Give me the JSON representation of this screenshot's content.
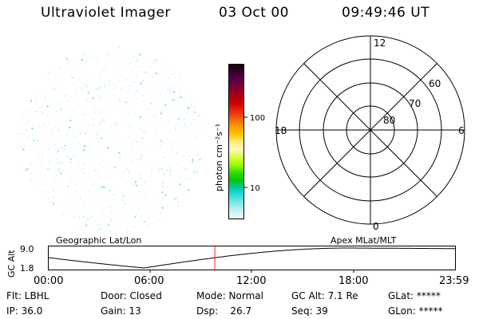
{
  "header": {
    "title": "Ultraviolet Imager",
    "date": "03 Oct 00",
    "time": "09:49:46 UT"
  },
  "colorbar": {
    "label": "photon cm⁻²s⁻¹",
    "ticks": [
      "100",
      "10"
    ],
    "colors": [
      "#1a0010",
      "#3a0030",
      "#5a0045",
      "#800030",
      "#a80018",
      "#cc0000",
      "#e8280c",
      "#f06010",
      "#ff9900",
      "#ffc000",
      "#ffeb6e",
      "#fff6c8",
      "#d8ff40",
      "#9cff00",
      "#33dd00",
      "#00c800",
      "#00c8a8",
      "#33dddd",
      "#80e8e8",
      "#c8f0f0",
      "#f2f8f8"
    ]
  },
  "polar": {
    "mlt_labels": [
      "12",
      "18",
      "6",
      "0"
    ],
    "lat_labels": [
      "60",
      "70",
      "80"
    ]
  },
  "timeline": {
    "y_axis_label": "GC Alt",
    "y_ticks": [
      "9.0",
      "1.8"
    ],
    "left_title": "Geographic Lat/Lon",
    "right_title": "Apex MLat/MLT",
    "x_ticks": [
      "00:00",
      "06:00",
      "12:00",
      "18:00",
      "23:59"
    ],
    "current_time_fraction": 0.409,
    "marker_color": "#ff2020"
  },
  "info": {
    "flt": "Flt: LBHL",
    "ip": "IP: 36.0",
    "door": "Door: Closed",
    "gain": "Gain: 13",
    "mode": "Mode: Normal",
    "dsp": "Dsp:    26.7",
    "gcalt": "GC Alt: 7.1 Re",
    "seq": "Seq: 39",
    "glat": "GLat: *****",
    "glon": "GLon: *****"
  }
}
